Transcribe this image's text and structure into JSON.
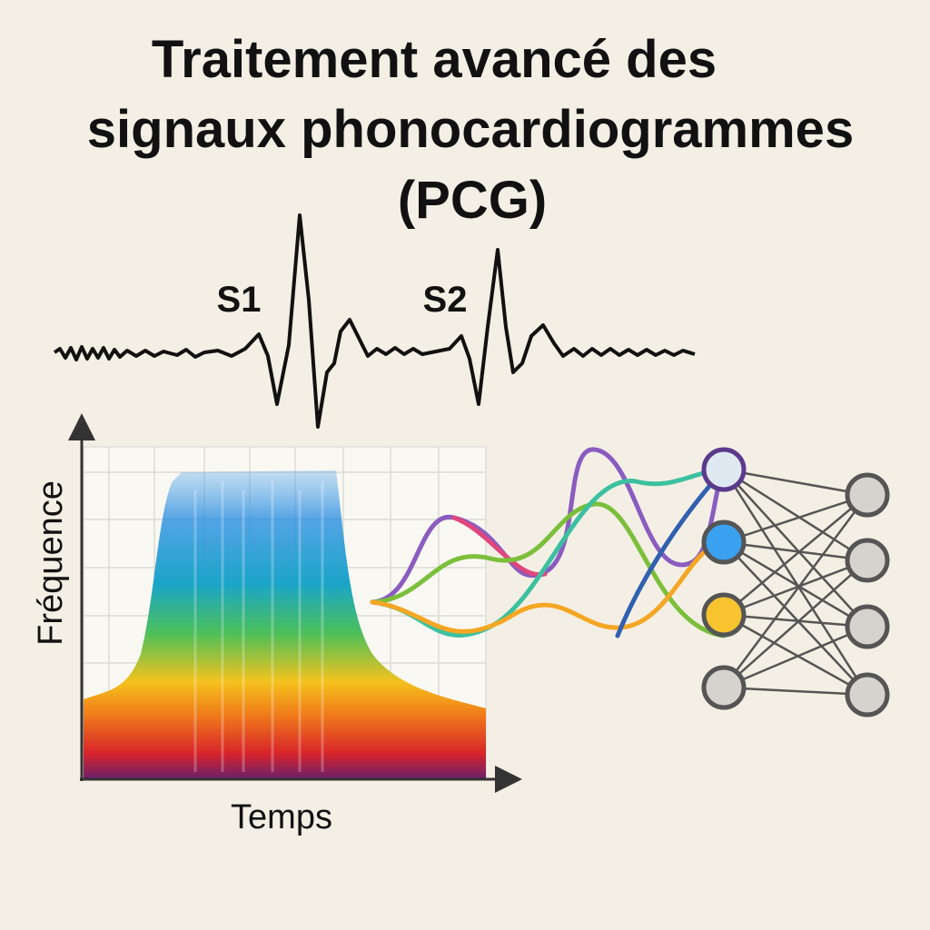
{
  "title_lines": [
    "Traitement avancé des",
    "signaux phonocardiogrammes",
    "(PCG)"
  ],
  "waveform": {
    "labels": [
      "S1",
      "S2"
    ]
  },
  "spectrogram": {
    "y_axis_label": "Fréquence",
    "x_axis_label": "Temps"
  }
}
